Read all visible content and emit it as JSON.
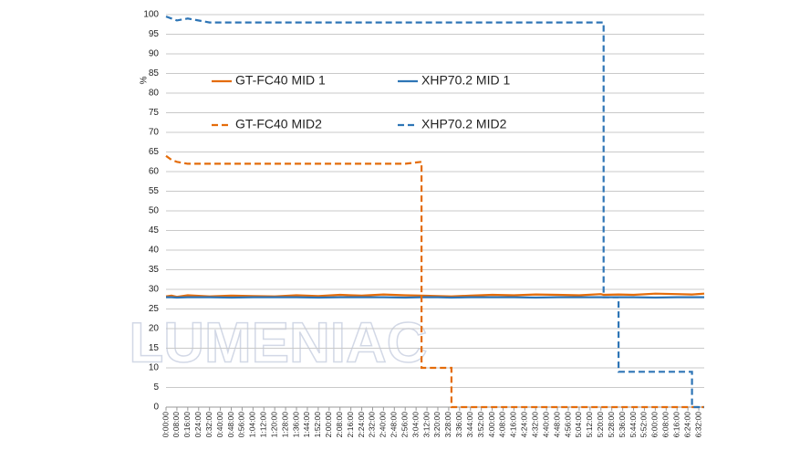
{
  "chart_data": {
    "type": "line",
    "y_label": "%",
    "watermark": "LUMENIAC",
    "x": [
      0,
      4,
      8,
      16,
      32,
      48,
      64,
      80,
      96,
      112,
      128,
      144,
      160,
      176,
      188,
      188,
      200,
      210,
      210,
      224,
      240,
      256,
      272,
      288,
      304,
      320,
      322,
      322,
      333,
      333,
      344,
      360,
      376,
      387,
      387,
      396
    ],
    "xlim": [
      0,
      396
    ],
    "ylim": [
      0,
      100
    ],
    "yticks": [
      0,
      5,
      10,
      15,
      20,
      25,
      30,
      35,
      40,
      45,
      50,
      55,
      60,
      65,
      70,
      75,
      80,
      85,
      90,
      95,
      100
    ],
    "grid": true,
    "xticks": [
      {
        "value": 0,
        "label": "0:00:00"
      },
      {
        "value": 8,
        "label": "0:08:00"
      },
      {
        "value": 16,
        "label": "0:16:00"
      },
      {
        "value": 24,
        "label": "0:24:00"
      },
      {
        "value": 32,
        "label": "0:32:00"
      },
      {
        "value": 40,
        "label": "0:40:00"
      },
      {
        "value": 48,
        "label": "0:48:00"
      },
      {
        "value": 56,
        "label": "0:56:00"
      },
      {
        "value": 64,
        "label": "1:04:00"
      },
      {
        "value": 72,
        "label": "1:12:00"
      },
      {
        "value": 80,
        "label": "1:20:00"
      },
      {
        "value": 88,
        "label": "1:28:00"
      },
      {
        "value": 96,
        "label": "1:36:00"
      },
      {
        "value": 104,
        "label": "1:44:00"
      },
      {
        "value": 112,
        "label": "1:52:00"
      },
      {
        "value": 120,
        "label": "2:00:00"
      },
      {
        "value": 128,
        "label": "2:08:00"
      },
      {
        "value": 136,
        "label": "2:16:00"
      },
      {
        "value": 144,
        "label": "2:24:00"
      },
      {
        "value": 152,
        "label": "2:32:00"
      },
      {
        "value": 160,
        "label": "2:40:00"
      },
      {
        "value": 168,
        "label": "2:48:00"
      },
      {
        "value": 176,
        "label": "2:56:00"
      },
      {
        "value": 184,
        "label": "3:04:00"
      },
      {
        "value": 192,
        "label": "3:12:00"
      },
      {
        "value": 200,
        "label": "3:20:00"
      },
      {
        "value": 208,
        "label": "3:28:00"
      },
      {
        "value": 216,
        "label": "3:36:00"
      },
      {
        "value": 224,
        "label": "3:44:00"
      },
      {
        "value": 232,
        "label": "3:52:00"
      },
      {
        "value": 240,
        "label": "4:00:00"
      },
      {
        "value": 248,
        "label": "4:08:00"
      },
      {
        "value": 256,
        "label": "4:16:00"
      },
      {
        "value": 264,
        "label": "4:24:00"
      },
      {
        "value": 272,
        "label": "4:32:00"
      },
      {
        "value": 280,
        "label": "4:40:00"
      },
      {
        "value": 288,
        "label": "4:48:00"
      },
      {
        "value": 296,
        "label": "4:56:00"
      },
      {
        "value": 304,
        "label": "5:04:00"
      },
      {
        "value": 312,
        "label": "5:12:00"
      },
      {
        "value": 320,
        "label": "5:20:00"
      },
      {
        "value": 328,
        "label": "5:28:00"
      },
      {
        "value": 336,
        "label": "5:36:00"
      },
      {
        "value": 344,
        "label": "5:44:00"
      },
      {
        "value": 352,
        "label": "5:52:00"
      },
      {
        "value": 360,
        "label": "6:00:00"
      },
      {
        "value": 368,
        "label": "6:08:00"
      },
      {
        "value": 376,
        "label": "6:16:00"
      },
      {
        "value": 384,
        "label": "6:24:00"
      },
      {
        "value": 392,
        "label": "6:32:00"
      }
    ],
    "series": [
      {
        "name": "GT-FC40 MID 1",
        "color": "#e46c0a",
        "dash": false,
        "values": [
          28.2,
          28.4,
          28.1,
          28.5,
          28.2,
          28.4,
          28.3,
          28.2,
          28.5,
          28.3,
          28.6,
          28.4,
          28.7,
          28.5,
          28.4,
          28.4,
          28.3,
          28.2,
          28.2,
          28.4,
          28.6,
          28.5,
          28.7,
          28.6,
          28.5,
          28.8,
          28.6,
          28.6,
          28.7,
          28.7,
          28.6,
          28.9,
          28.8,
          28.7,
          28.7,
          28.9
        ]
      },
      {
        "name": "XHP70.2 MID 1",
        "color": "#2e75b6",
        "dash": false,
        "values": [
          28,
          28,
          27.9,
          28,
          28,
          27.9,
          28,
          28,
          28,
          27.9,
          28,
          28,
          28,
          27.9,
          28,
          28,
          28,
          27.9,
          27.9,
          28,
          28,
          28,
          27.9,
          28,
          28,
          28,
          28,
          28,
          28,
          28,
          28,
          27.9,
          28,
          28,
          28,
          28
        ]
      },
      {
        "name": "GT-FC40 MID2",
        "color": "#e46c0a",
        "dash": true,
        "values": [
          64,
          63,
          62.5,
          62,
          62,
          62,
          62,
          62,
          62,
          62,
          62,
          62,
          62,
          62,
          62.5,
          10,
          10,
          10,
          0,
          0,
          0,
          0,
          0,
          0,
          0,
          0,
          0,
          0,
          0,
          0,
          0,
          0,
          0,
          0,
          0,
          0
        ]
      },
      {
        "name": "XHP70.2 MID2",
        "color": "#2e75b6",
        "dash": true,
        "values": [
          99.5,
          99,
          98.5,
          99,
          98,
          98,
          98,
          98,
          98,
          98,
          98,
          98,
          98,
          98,
          98,
          98,
          98,
          98,
          98,
          98,
          98,
          98,
          98,
          98,
          98,
          98,
          98,
          28,
          28,
          9,
          9,
          9,
          9,
          9,
          0,
          0
        ]
      }
    ]
  }
}
